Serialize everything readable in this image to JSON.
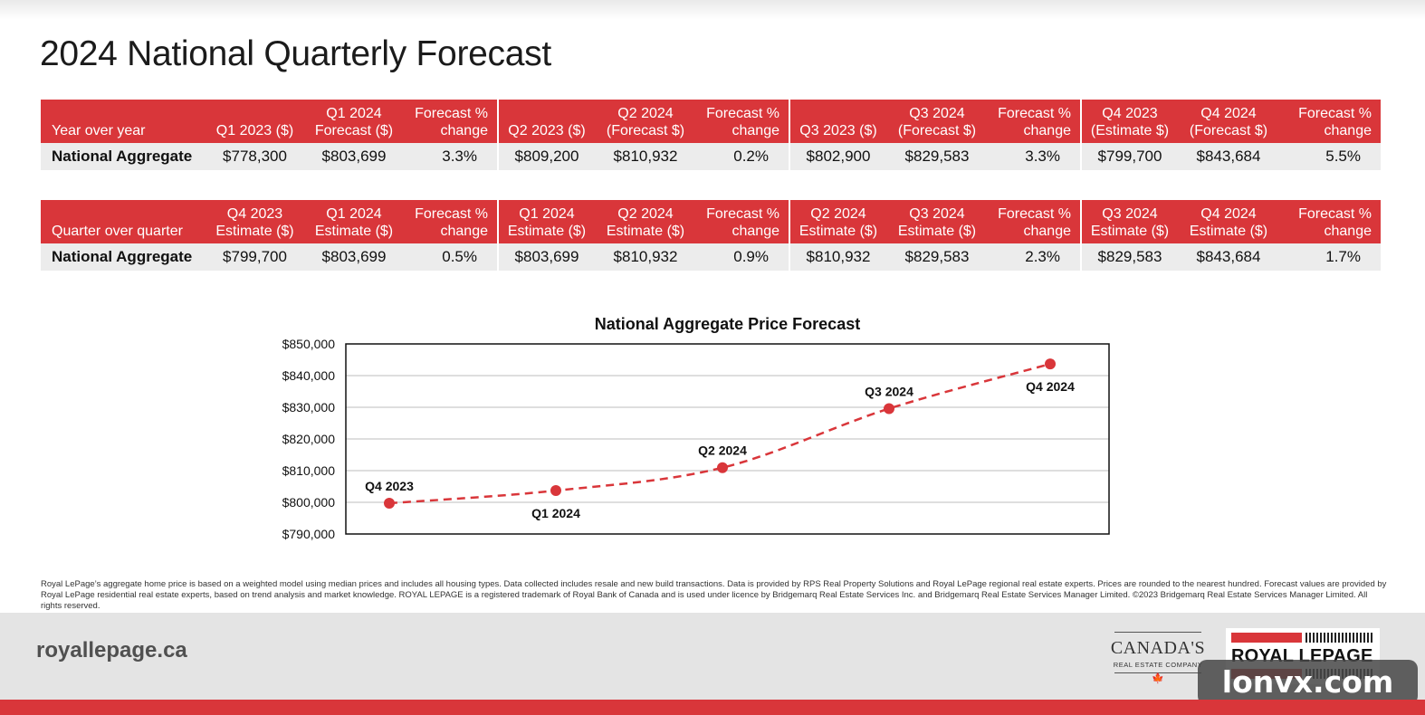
{
  "title": "2024 National Quarterly Forecast",
  "colors": {
    "brand_red": "#d9363a",
    "row_gray": "#ececec",
    "footer_gray": "#e4e4e4",
    "chart_line": "#d9363a"
  },
  "table_yoy": {
    "headers": [
      "Year over year",
      "Q1 2023 ($)",
      "Q1 2024 Forecast ($)",
      "Forecast % change",
      "Q2 2023 ($)",
      "Q2 2024 (Forecast $)",
      "Forecast % change",
      "Q3 2023 ($)",
      "Q3 2024 (Forecast $)",
      "Forecast % change",
      "Q4 2023 (Estimate $)",
      "Q4 2024 (Forecast $)",
      "Forecast % change"
    ],
    "row": [
      "National Aggregate",
      "$778,300",
      "$803,699",
      "3.3%",
      "$809,200",
      "$810,932",
      "0.2%",
      "$802,900",
      "$829,583",
      "3.3%",
      "$799,700",
      "$843,684",
      "5.5%"
    ]
  },
  "table_qoq": {
    "headers": [
      "Quarter over quarter",
      "Q4 2023 Estimate ($)",
      "Q1 2024 Estimate ($)",
      "Forecast % change",
      "Q1 2024 Estimate ($)",
      "Q2 2024 Estimate ($)",
      "Forecast % change",
      "Q2 2024 Estimate ($)",
      "Q3 2024 Estimate ($)",
      "Forecast % change",
      "Q3 2024 Estimate ($)",
      "Q4 2024 Estimate ($)",
      "Forecast % change"
    ],
    "row": [
      "National Aggregate",
      "$799,700",
      "$803,699",
      "0.5%",
      "$803,699",
      "$810,932",
      "0.9%",
      "$810,932",
      "$829,583",
      "2.3%",
      "$829,583",
      "$843,684",
      "1.7%"
    ]
  },
  "chart_data": {
    "type": "line",
    "title": "National Aggregate Price Forecast",
    "categories": [
      "Q4 2023",
      "Q1 2024",
      "Q2 2024",
      "Q3 2024",
      "Q4 2024"
    ],
    "values": [
      799700,
      803699,
      810932,
      829583,
      843684
    ],
    "ylim": [
      790000,
      850000
    ],
    "yticks": [
      790000,
      800000,
      810000,
      820000,
      830000,
      840000,
      850000
    ],
    "ytick_labels": [
      "$790,000",
      "$800,000",
      "$810,000",
      "$820,000",
      "$830,000",
      "$840,000",
      "$850,000"
    ],
    "line_style": "dashed",
    "grid": true,
    "point_label_positions": [
      "above",
      "below",
      "above",
      "above",
      "below"
    ]
  },
  "footnote": "Royal LePage’s aggregate home price is based on a weighted model using median prices and includes all housing types. Data collected includes resale and new build transactions. Data is provided by RPS Real Property Solutions and Royal LePage regional real estate experts. Prices are rounded to the nearest hundred. Forecast values are provided by Royal LePage residential real estate experts, based on trend analysis and market knowledge. ROYAL LEPAGE is a registered trademark of Royal Bank of Canada and is used under licence by Bridgemarq Real Estate Services Inc. and Bridgemarq Real Estate Services Manager Limited. ©2023 Bridgemarq Real Estate Services Manager Limited. All rights reserved.",
  "footer": {
    "website": "royallepage.ca",
    "badge_title": "CANADA'S",
    "badge_subtitle": "REAL ESTATE COMPANY",
    "logo_text": "ROYAL LEPAGE",
    "watermark": "lonvx.com"
  },
  "icons": {
    "maple_leaf": "maple-leaf-icon"
  }
}
